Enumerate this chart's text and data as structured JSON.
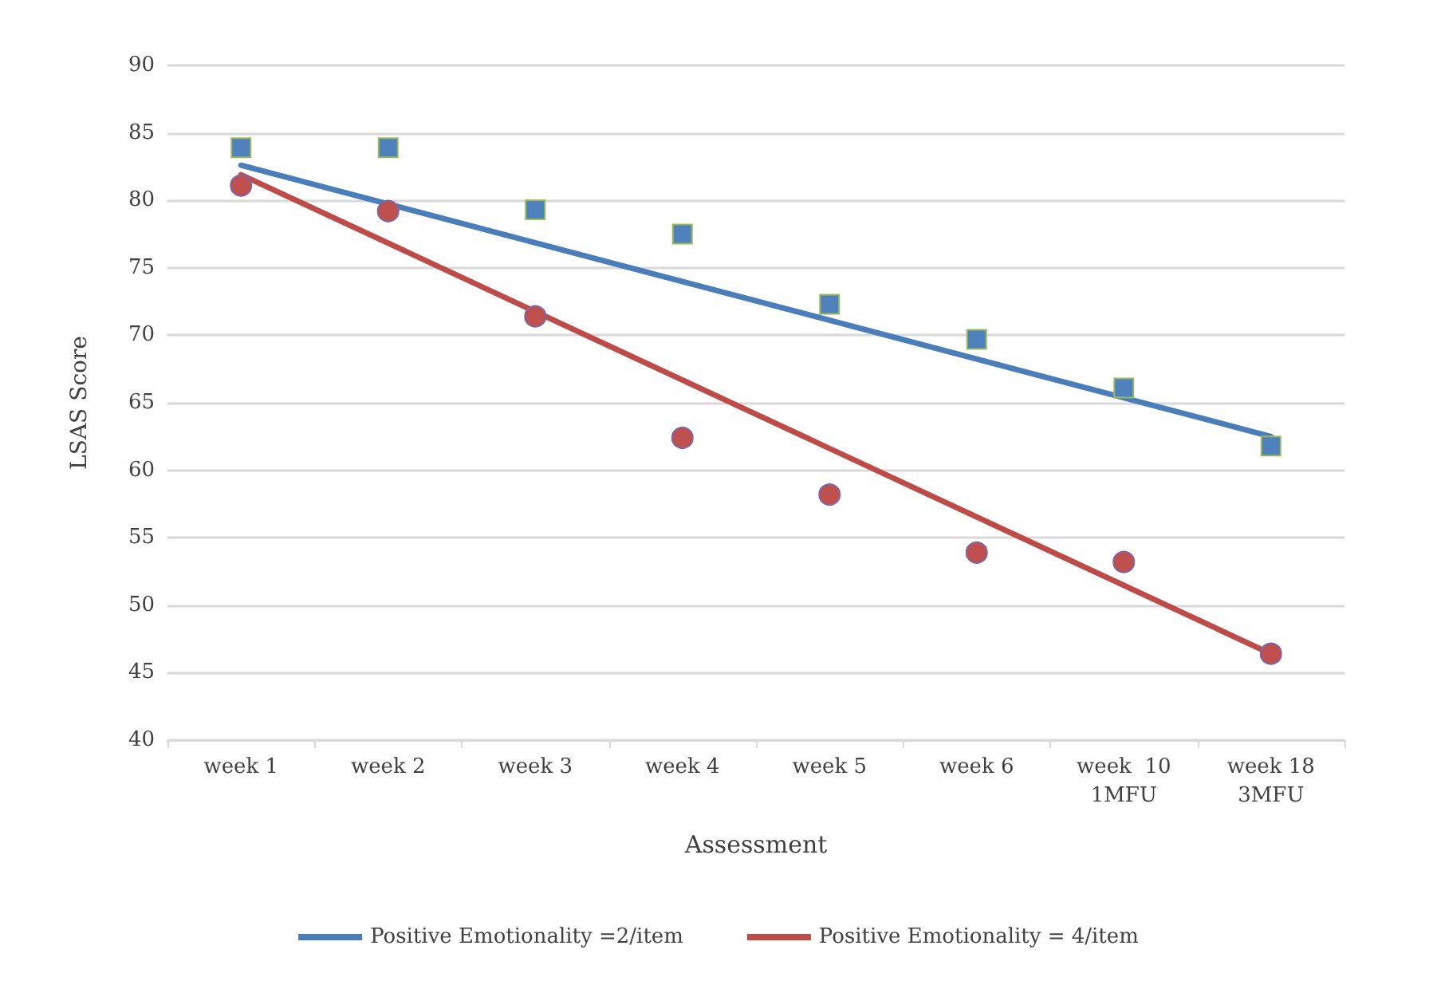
{
  "chart_data": {
    "type": "scatter",
    "xlabel": "Assessment",
    "ylabel": "LSAS Score",
    "categories": [
      "week 1",
      "week 2",
      "week 3",
      "week 4",
      "week 5",
      "week 6",
      "week  10\n1MFU",
      "week 18\n3MFU"
    ],
    "ylim": [
      40,
      90
    ],
    "yticks": [
      40,
      45,
      50,
      55,
      60,
      65,
      70,
      75,
      80,
      85,
      90
    ],
    "grid": "y",
    "legend": "bottom",
    "series": [
      {
        "marker": "square",
        "color": "#4f81bd",
        "values": [
          83.9,
          83.9,
          79.3,
          77.5,
          72.3,
          69.7,
          66.1,
          61.8
        ]
      },
      {
        "marker": "circle",
        "color": "#c0504d",
        "values": [
          81.1,
          79.2,
          71.4,
          62.4,
          58.2,
          53.9,
          53.2,
          46.4
        ]
      },
      {
        "type": "line",
        "name": "Positive Emotionality =2/item",
        "color": "#4a7ebb",
        "line_style": "solid",
        "marker": "none",
        "values": [
          82.6,
          null,
          null,
          null,
          null,
          null,
          null,
          62.5
        ]
      },
      {
        "type": "line",
        "name": "Positive Emotionality = 4/item",
        "color": "#be4b48",
        "line_style": "solid",
        "marker": "none",
        "values": [
          81.9,
          null,
          null,
          null,
          null,
          null,
          null,
          46.4
        ]
      }
    ]
  }
}
